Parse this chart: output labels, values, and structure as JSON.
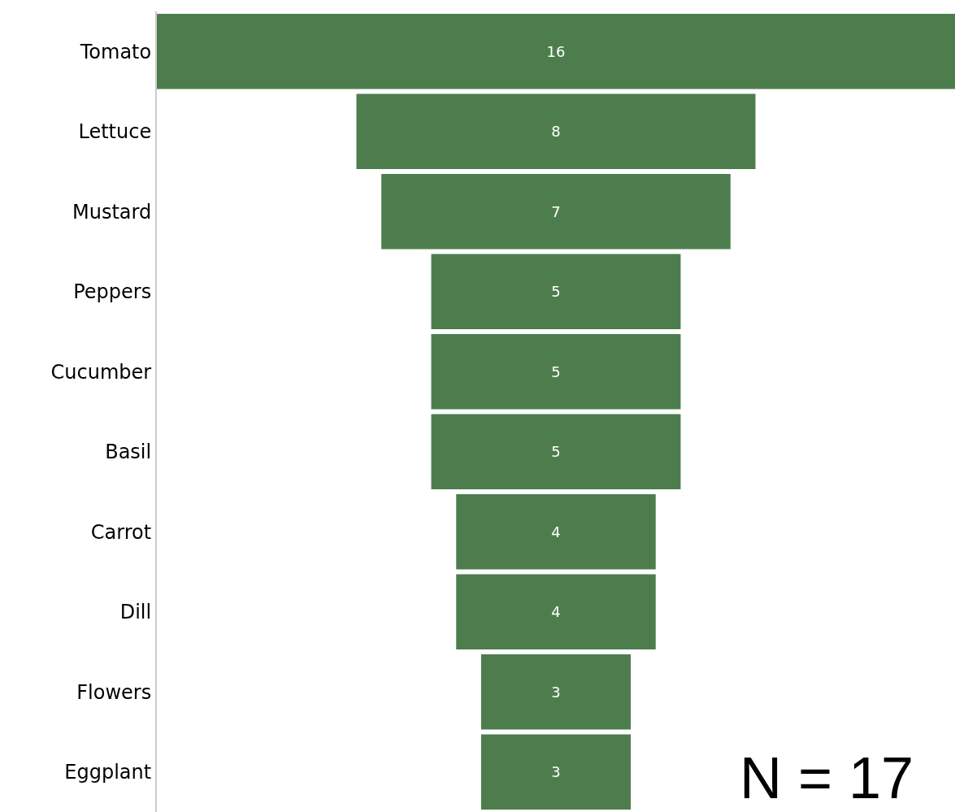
{
  "chart_data": {
    "type": "other",
    "categories": [
      "Tomato",
      "Lettuce",
      "Mustard",
      "Peppers",
      "Cucumber",
      "Basil",
      "Carrot",
      "Dill",
      "Flowers",
      "Eggplant"
    ],
    "values": [
      16,
      8,
      7,
      5,
      5,
      5,
      4,
      4,
      3,
      3
    ],
    "color": "#4e7d4d",
    "data_labels": true,
    "annotations": [
      "N = 17"
    ]
  }
}
